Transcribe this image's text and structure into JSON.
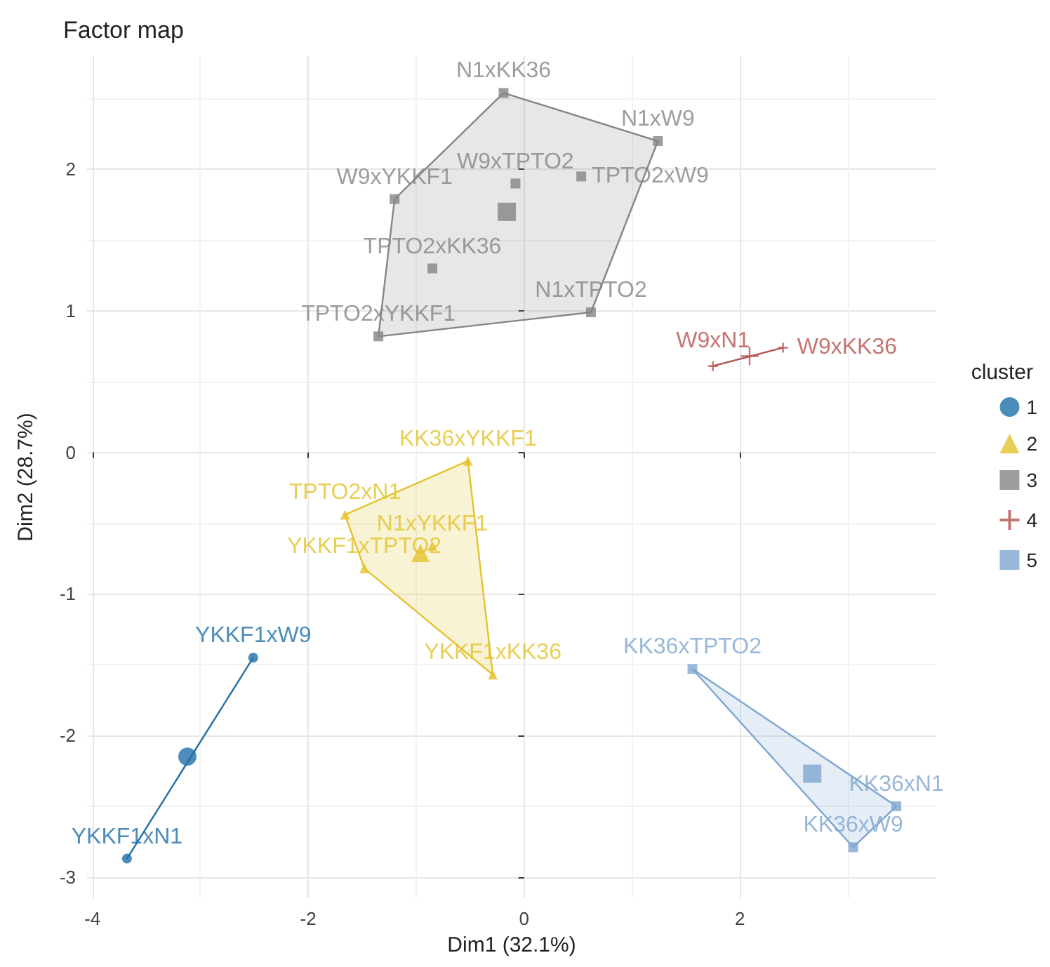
{
  "chart_data": {
    "type": "scatter",
    "title": "Factor map",
    "xlabel": "Dim1 (32.1%)",
    "ylabel": "Dim2 (28.7%)",
    "legend_title": "cluster",
    "legend": "right",
    "grid": true,
    "xlim": [
      -4.05,
      3.82
    ],
    "ylim": [
      -3.15,
      2.8
    ],
    "xticks": [
      -4,
      -2,
      0,
      2
    ],
    "yticks": [
      -3,
      -2,
      -1,
      0,
      1,
      2
    ],
    "series": [
      {
        "name": "1",
        "color": "#1f6fa8",
        "marker": "circle",
        "x": [
          -2.51,
          -3.68
        ],
        "values": [
          -1.45,
          -2.87
        ],
        "value_labels": [
          "YKKF1xW9",
          "YKKF1xN1"
        ]
      },
      {
        "name": "2",
        "color": "#e3c22b",
        "marker": "triangle",
        "x": [
          -0.52,
          -1.66,
          -1.48,
          -0.85,
          -0.29
        ],
        "values": [
          -0.06,
          -0.44,
          -0.82,
          -0.66,
          -1.57
        ],
        "value_labels": [
          "KK36xYKKF1",
          "TPTO2xN1",
          "YKKF1xTPTO2",
          "N1xYKKF1",
          "YKKF1xKK36"
        ]
      },
      {
        "name": "3",
        "color": "#858585",
        "marker": "square",
        "x": [
          -0.19,
          1.24,
          -1.2,
          -0.08,
          0.53,
          -0.85,
          0.62,
          -1.35
        ],
        "values": [
          2.54,
          2.2,
          1.79,
          1.9,
          1.95,
          1.3,
          0.99,
          0.82
        ],
        "value_labels": [
          "N1xKK36",
          "N1xW9",
          "W9xYKKF1",
          "W9xTPTO2",
          "TPTO2xW9",
          "TPTO2xKK36",
          "N1xTPTO2",
          "TPTO2xYKKF1"
        ]
      },
      {
        "name": "4",
        "color": "#b5514f",
        "marker": "cross",
        "x": [
          1.75,
          2.4
        ],
        "values": [
          0.61,
          0.74
        ],
        "value_labels": [
          "W9xN1",
          "W9xKK36"
        ]
      },
      {
        "name": "5",
        "color": "#7fa6d0",
        "marker": "square",
        "x": [
          1.56,
          3.45,
          3.05
        ],
        "values": [
          -1.53,
          -2.5,
          -2.79
        ],
        "value_labels": [
          "KK36xTPTO2",
          "KK36xN1",
          "KK36xW9"
        ]
      },
      {
        "color": "#1f6fa8",
        "marker": "circle",
        "x": [
          -3.12
        ],
        "values": [
          -2.15
        ]
      },
      {
        "color": "#e3c22b",
        "marker": "triangle",
        "x": [
          -0.96
        ],
        "values": [
          -0.71
        ]
      },
      {
        "color": "#858585",
        "marker": "square",
        "x": [
          -0.16
        ],
        "values": [
          1.7
        ]
      },
      {
        "color": "#b5514f",
        "marker": "cross",
        "x": [
          2.09
        ],
        "values": [
          0.68
        ]
      },
      {
        "color": "#7fa6d0",
        "marker": "square",
        "x": [
          2.67
        ],
        "values": [
          -2.27
        ]
      },
      {
        "type": "line",
        "color": "#1f6fa8",
        "marker": "none",
        "x": [
          -2.51,
          -3.68
        ],
        "values": [
          -1.45,
          -2.87
        ]
      },
      {
        "type": "area",
        "color": "#e3c22b",
        "x": [
          -0.52,
          -1.66,
          -1.48,
          -0.29
        ],
        "values": [
          -0.06,
          -0.44,
          -0.82,
          -1.57
        ]
      },
      {
        "type": "area",
        "color": "#858585",
        "x": [
          -0.19,
          1.24,
          0.62,
          -1.35,
          -1.2
        ],
        "values": [
          2.54,
          2.2,
          0.99,
          0.82,
          1.79
        ]
      },
      {
        "type": "line",
        "color": "#b5514f",
        "marker": "none",
        "x": [
          1.75,
          2.4
        ],
        "values": [
          0.61,
          0.74
        ]
      },
      {
        "type": "area",
        "color": "#7fa6d0",
        "x": [
          1.56,
          3.45,
          3.05
        ],
        "values": [
          -1.53,
          -2.5,
          -2.79
        ]
      }
    ]
  }
}
